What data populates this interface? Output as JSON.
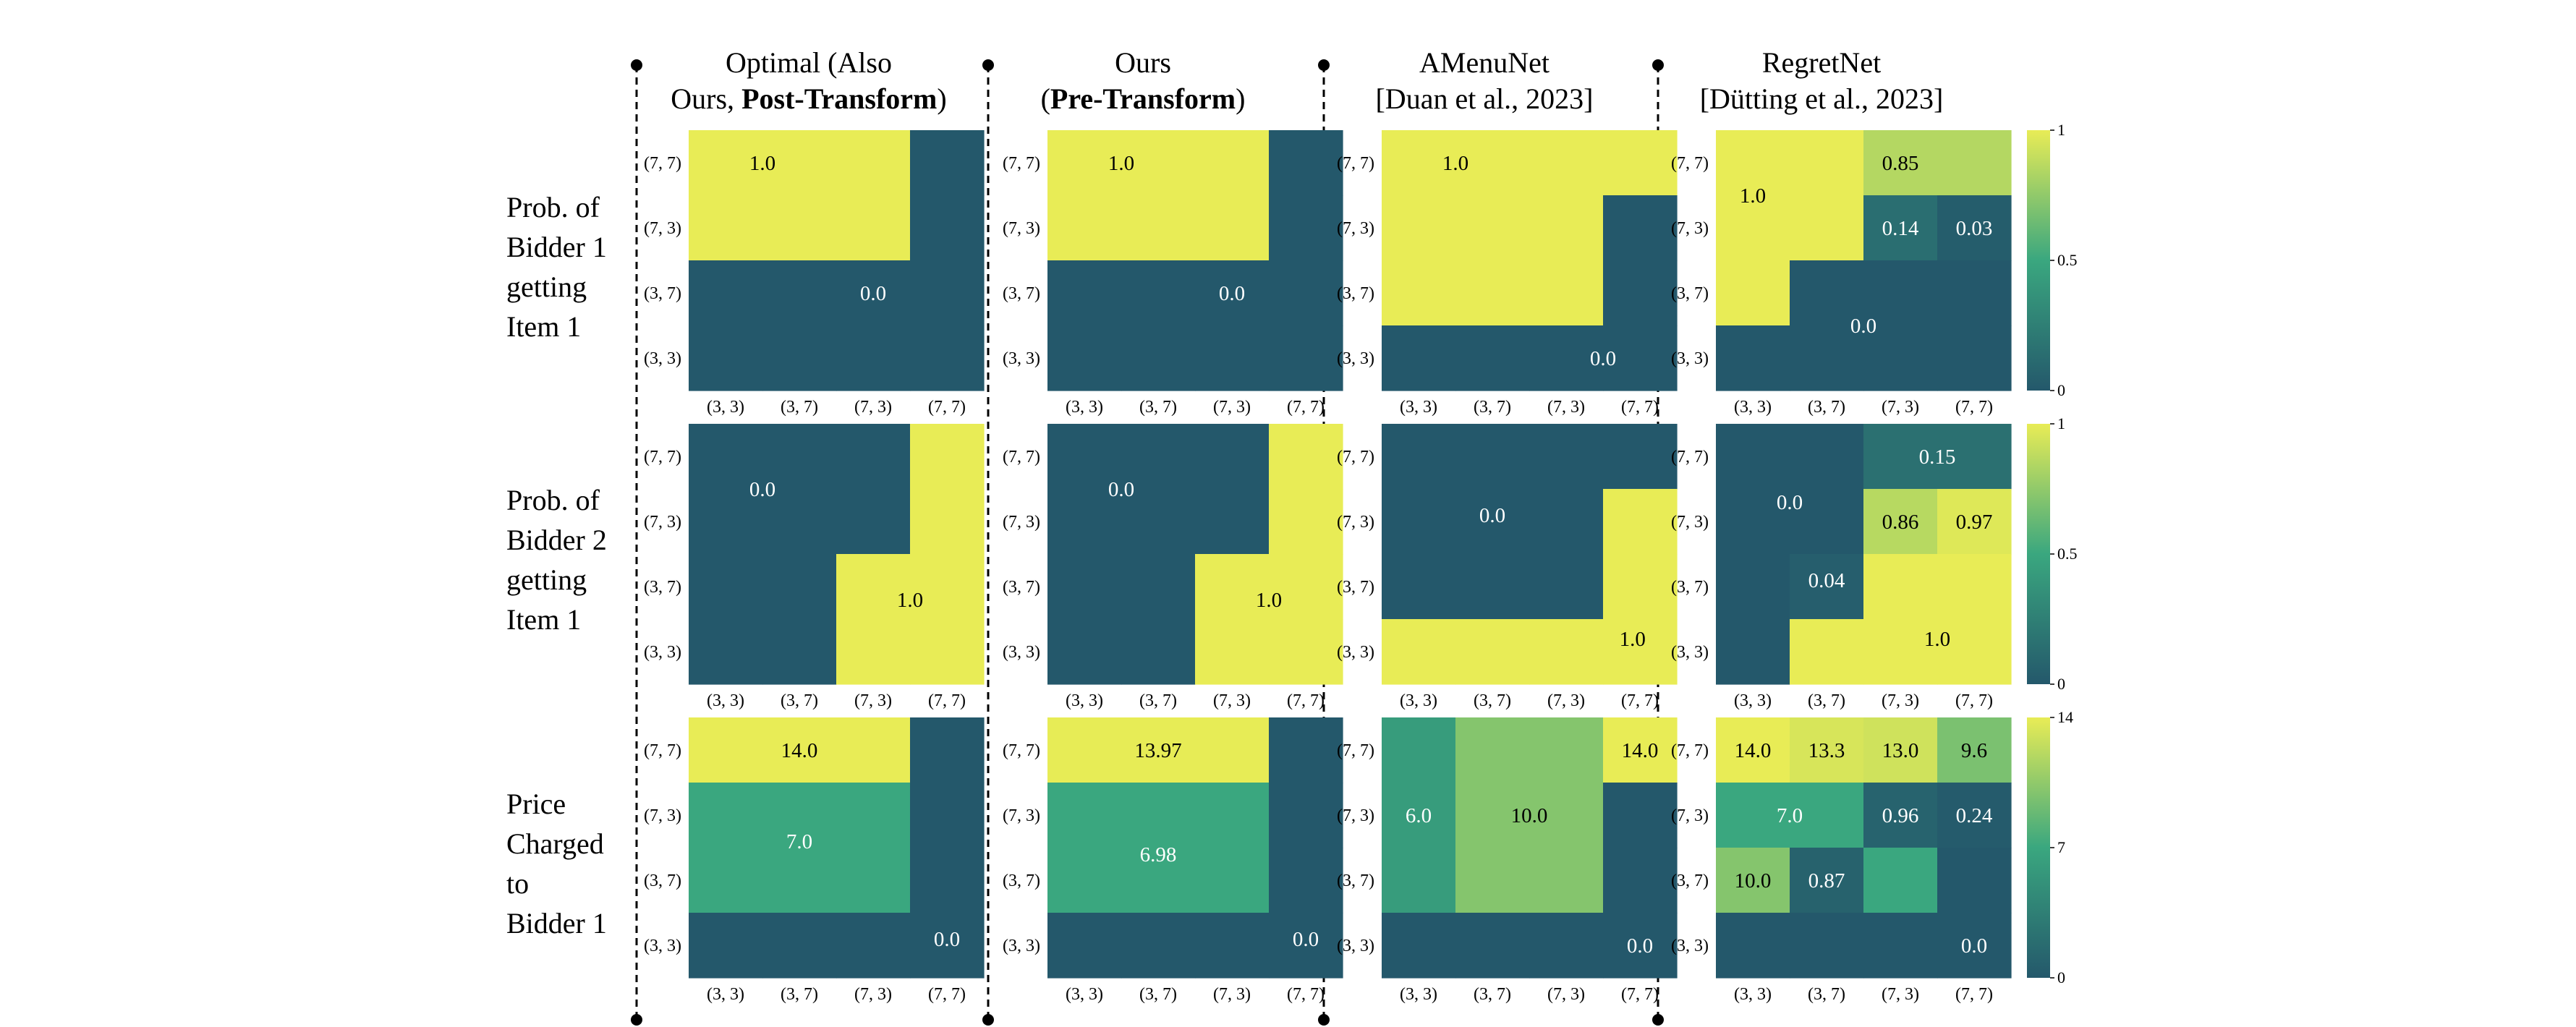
{
  "columns": [
    {
      "line1": "Optimal (Also",
      "line2_plain": "Ours, ",
      "line2_bold": "Post-Transform",
      "line2_tail": ")"
    },
    {
      "line1": "Ours",
      "line2_plain": "(",
      "line2_bold": "Pre-Transform",
      "line2_tail": ")"
    },
    {
      "line1": "AMenuNet",
      "line2_plain": "[Duan et al., 2023]",
      "line2_bold": "",
      "line2_tail": ""
    },
    {
      "line1": "RegretNet",
      "line2_plain": "[Dütting et al., 2023]",
      "line2_bold": "",
      "line2_tail": ""
    }
  ],
  "rows": [
    {
      "lines": [
        "Prob. of",
        "Bidder 1",
        "getting",
        "Item 1"
      ]
    },
    {
      "lines": [
        "Prob. of",
        "Bidder 2",
        "getting",
        "Item 1"
      ]
    },
    {
      "lines": [
        "Price",
        "Charged",
        "to",
        "Bidder 1"
      ]
    }
  ],
  "colors": {
    "low": "#24586b",
    "mid": "#3aa77f",
    "high": "#e8ec56",
    "divider": "#000000"
  },
  "chart_data": [
    {
      "type": "heatmap",
      "x_ticks": [
        "(3, 3)",
        "(3, 7)",
        "(7, 3)",
        "(7, 7)"
      ],
      "y_ticks": [
        "(7, 7)",
        "(7, 3)",
        "(3, 7)",
        "(3, 3)"
      ],
      "panels": [
        {
          "row": 0,
          "col": 0,
          "vmax": 1,
          "values": [
            [
              1,
              1,
              1,
              0
            ],
            [
              1,
              1,
              1,
              0
            ],
            [
              0,
              0,
              0,
              0
            ],
            [
              0,
              0,
              0,
              0
            ]
          ],
          "labels": [
            {
              "text": "1.0",
              "x": 1.0,
              "y": 0.5
            },
            {
              "text": "0.0",
              "x": 2.5,
              "y": 2.5
            }
          ]
        },
        {
          "row": 0,
          "col": 1,
          "vmax": 1,
          "values": [
            [
              1,
              1,
              1,
              0
            ],
            [
              1,
              1,
              1,
              0
            ],
            [
              0,
              0,
              0,
              0
            ],
            [
              0,
              0,
              0,
              0
            ]
          ],
          "labels": [
            {
              "text": "1.0",
              "x": 1.0,
              "y": 0.5
            },
            {
              "text": "0.0",
              "x": 2.5,
              "y": 2.5
            }
          ]
        },
        {
          "row": 0,
          "col": 2,
          "vmax": 1,
          "values": [
            [
              1,
              1,
              1,
              1
            ],
            [
              1,
              1,
              1,
              0
            ],
            [
              1,
              1,
              1,
              0
            ],
            [
              0,
              0,
              0,
              0
            ]
          ],
          "labels": [
            {
              "text": "1.0",
              "x": 1.0,
              "y": 0.5
            },
            {
              "text": "0.0",
              "x": 3.0,
              "y": 3.5
            }
          ]
        },
        {
          "row": 0,
          "col": 3,
          "vmax": 1,
          "values": [
            [
              1,
              1,
              0.85,
              0.85
            ],
            [
              1,
              1,
              0.14,
              0.03
            ],
            [
              1,
              0,
              0,
              0
            ],
            [
              0,
              0,
              0,
              0
            ]
          ],
          "labels": [
            {
              "text": "1.0",
              "x": 0.5,
              "y": 1.0
            },
            {
              "text": "0.85",
              "x": 2.5,
              "y": 0.5
            },
            {
              "text": "0.14",
              "x": 2.5,
              "y": 1.5
            },
            {
              "text": "0.03",
              "x": 3.5,
              "y": 1.5
            },
            {
              "text": "0.0",
              "x": 2.0,
              "y": 3.0
            }
          ]
        },
        {
          "row": 1,
          "col": 0,
          "vmax": 1,
          "values": [
            [
              0,
              0,
              0,
              1
            ],
            [
              0,
              0,
              0,
              1
            ],
            [
              0,
              0,
              1,
              1
            ],
            [
              0,
              0,
              1,
              1
            ]
          ],
          "labels": [
            {
              "text": "0.0",
              "x": 1.0,
              "y": 1.0
            },
            {
              "text": "1.0",
              "x": 3.0,
              "y": 2.7
            }
          ]
        },
        {
          "row": 1,
          "col": 1,
          "vmax": 1,
          "values": [
            [
              0,
              0,
              0,
              1
            ],
            [
              0,
              0,
              0,
              1
            ],
            [
              0,
              0,
              1,
              1
            ],
            [
              0,
              0,
              1,
              1
            ]
          ],
          "labels": [
            {
              "text": "0.0",
              "x": 1.0,
              "y": 1.0
            },
            {
              "text": "1.0",
              "x": 3.0,
              "y": 2.7
            }
          ]
        },
        {
          "row": 1,
          "col": 2,
          "vmax": 1,
          "values": [
            [
              0,
              0,
              0,
              0
            ],
            [
              0,
              0,
              0,
              1
            ],
            [
              0,
              0,
              0,
              1
            ],
            [
              1,
              1,
              1,
              1
            ]
          ],
          "labels": [
            {
              "text": "0.0",
              "x": 1.5,
              "y": 1.4
            },
            {
              "text": "1.0",
              "x": 3.4,
              "y": 3.3
            }
          ]
        },
        {
          "row": 1,
          "col": 3,
          "vmax": 1,
          "values": [
            [
              0,
              0,
              0.15,
              0.15
            ],
            [
              0,
              0,
              0.86,
              0.97
            ],
            [
              0,
              0.04,
              1,
              1
            ],
            [
              0,
              1,
              1,
              1
            ]
          ],
          "labels": [
            {
              "text": "0.0",
              "x": 1.0,
              "y": 1.2
            },
            {
              "text": "0.15",
              "x": 3.0,
              "y": 0.5
            },
            {
              "text": "0.86",
              "x": 2.5,
              "y": 1.5
            },
            {
              "text": "0.97",
              "x": 3.5,
              "y": 1.5
            },
            {
              "text": "0.04",
              "x": 1.5,
              "y": 2.4
            },
            {
              "text": "1.0",
              "x": 3.0,
              "y": 3.3
            }
          ]
        },
        {
          "row": 2,
          "col": 0,
          "vmax": 14,
          "values": [
            [
              14,
              14,
              14,
              0
            ],
            [
              7,
              7,
              7,
              0
            ],
            [
              7,
              7,
              7,
              0
            ],
            [
              0,
              0,
              0,
              0
            ]
          ],
          "labels": [
            {
              "text": "14.0",
              "x": 1.5,
              "y": 0.5
            },
            {
              "text": "7.0",
              "x": 1.5,
              "y": 1.9
            },
            {
              "text": "0.0",
              "x": 3.5,
              "y": 3.4
            }
          ]
        },
        {
          "row": 2,
          "col": 1,
          "vmax": 14,
          "values": [
            [
              13.97,
              13.97,
              13.97,
              0
            ],
            [
              6.98,
              6.98,
              6.98,
              0
            ],
            [
              6.98,
              6.98,
              6.98,
              0
            ],
            [
              0,
              0,
              0,
              0
            ]
          ],
          "labels": [
            {
              "text": "13.97",
              "x": 1.5,
              "y": 0.5
            },
            {
              "text": "6.98",
              "x": 1.5,
              "y": 2.1
            },
            {
              "text": "0.0",
              "x": 3.5,
              "y": 3.4
            }
          ]
        },
        {
          "row": 2,
          "col": 2,
          "vmax": 14,
          "values": [
            [
              6,
              10,
              10,
              14
            ],
            [
              6,
              10,
              10,
              0
            ],
            [
              6,
              10,
              10,
              0
            ],
            [
              0,
              0,
              0,
              0
            ]
          ],
          "labels": [
            {
              "text": "6.0",
              "x": 0.5,
              "y": 1.5
            },
            {
              "text": "10.0",
              "x": 2.0,
              "y": 1.5
            },
            {
              "text": "14.0",
              "x": 3.5,
              "y": 0.5
            },
            {
              "text": "0.0",
              "x": 3.5,
              "y": 3.5
            }
          ]
        },
        {
          "row": 2,
          "col": 3,
          "vmax": 14,
          "values": [
            [
              14,
              13.3,
              13,
              9.6
            ],
            [
              7,
              7,
              0.96,
              0.24
            ],
            [
              10,
              0.87,
              7,
              0
            ],
            [
              0,
              0,
              0,
              0
            ]
          ],
          "labels": [
            {
              "text": "14.0",
              "x": 0.5,
              "y": 0.5
            },
            {
              "text": "13.3",
              "x": 1.5,
              "y": 0.5
            },
            {
              "text": "13.0",
              "x": 2.5,
              "y": 0.5
            },
            {
              "text": "9.6",
              "x": 3.5,
              "y": 0.5
            },
            {
              "text": "7.0",
              "x": 1.0,
              "y": 1.5
            },
            {
              "text": "0.96",
              "x": 2.5,
              "y": 1.5
            },
            {
              "text": "0.24",
              "x": 3.5,
              "y": 1.5
            },
            {
              "text": "10.0",
              "x": 0.5,
              "y": 2.5
            },
            {
              "text": "0.87",
              "x": 1.5,
              "y": 2.5
            },
            {
              "text": "0.0",
              "x": 3.5,
              "y": 3.5
            }
          ]
        }
      ],
      "colorbars": [
        {
          "row": 0,
          "vmin": 0,
          "vmax": 1,
          "ticks": [
            "1",
            "0.5",
            "0"
          ]
        },
        {
          "row": 1,
          "vmin": 0,
          "vmax": 1,
          "ticks": [
            "1",
            "0.5",
            "0"
          ]
        },
        {
          "row": 2,
          "vmin": 0,
          "vmax": 14,
          "ticks": [
            "14",
            "7",
            "0"
          ]
        }
      ]
    }
  ]
}
